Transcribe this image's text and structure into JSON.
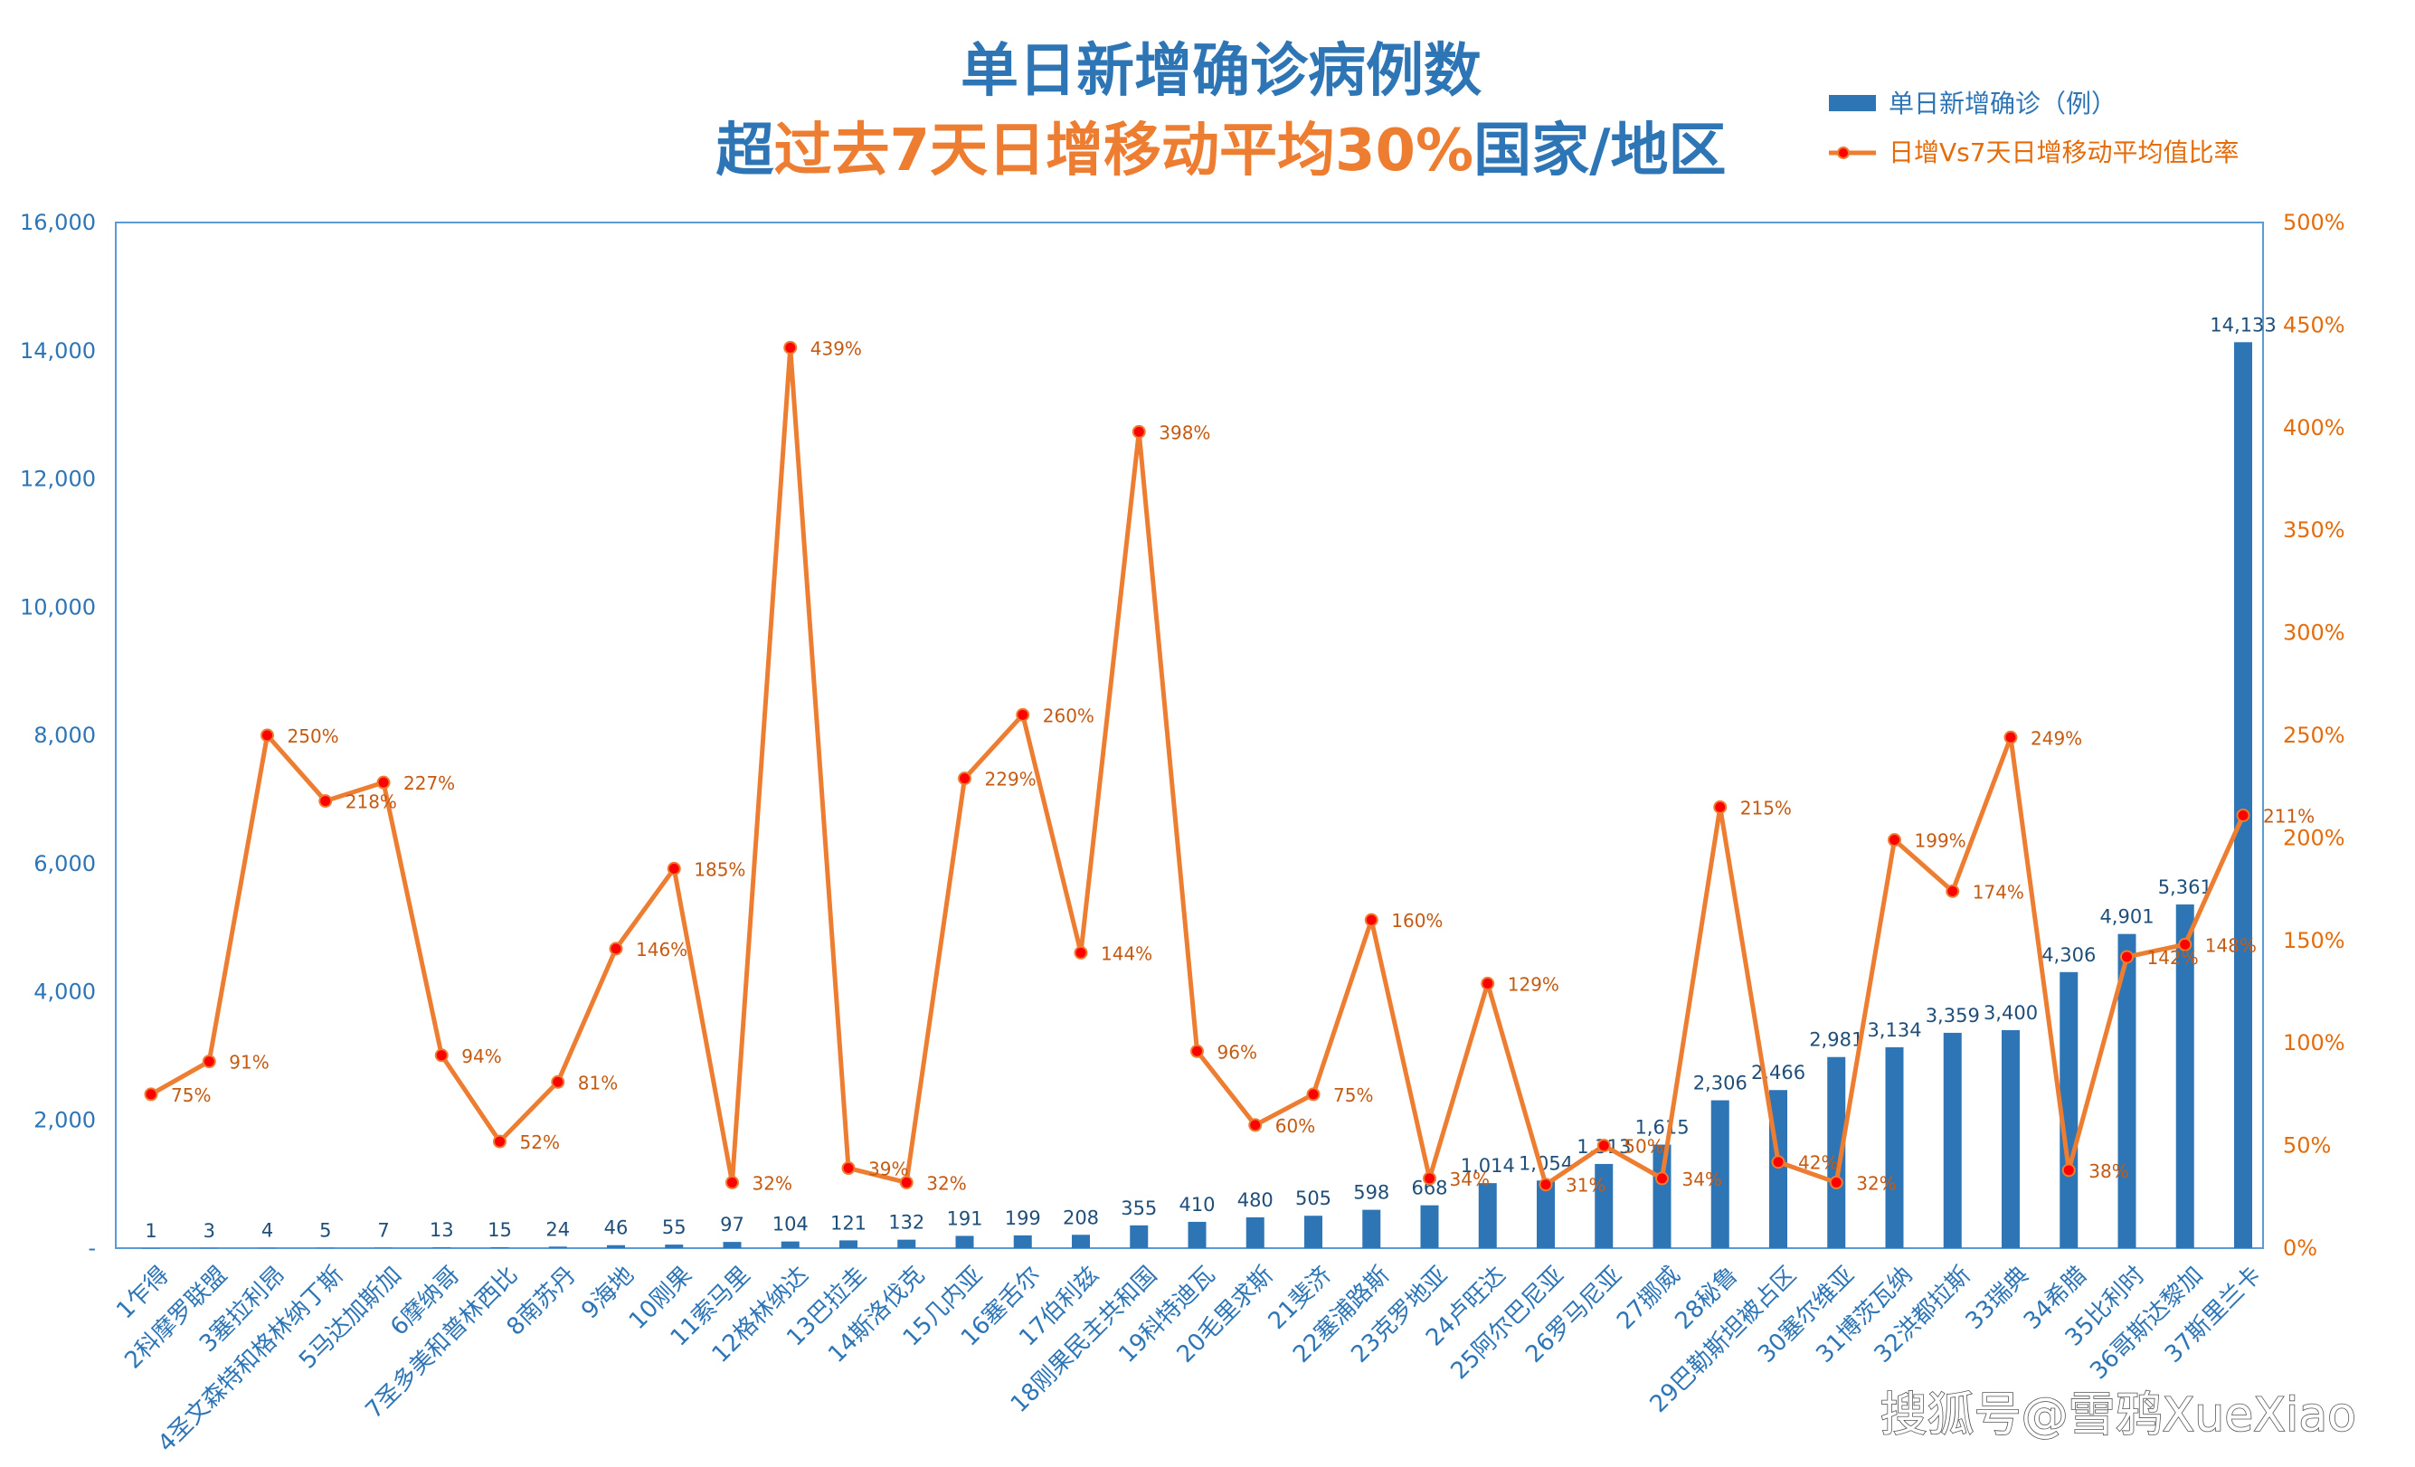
{
  "chart_data": {
    "type": "bar",
    "title_line1": "单日新增确诊病例数",
    "title_line2": [
      {
        "text": "超",
        "color": "#2e75b6"
      },
      {
        "text": "过去7天日增移动平均30%",
        "color": "#ed7d31"
      },
      {
        "text": "国家/地区",
        "color": "#2e75b6"
      }
    ],
    "legend_placement": "top-right",
    "left_axis": {
      "ylim": [
        0,
        16000
      ],
      "ticks": [
        "-",
        "2,000",
        "4,000",
        "6,000",
        "8,000",
        "10,000",
        "12,000",
        "14,000",
        "16,000"
      ],
      "tick_values": [
        0,
        2000,
        4000,
        6000,
        8000,
        10000,
        12000,
        14000,
        16000
      ]
    },
    "right_axis": {
      "ylim": [
        0,
        500
      ],
      "ticks": [
        "0%",
        "50%",
        "100%",
        "150%",
        "200%",
        "250%",
        "300%",
        "350%",
        "400%",
        "450%",
        "500%"
      ],
      "tick_values": [
        0,
        50,
        100,
        150,
        200,
        250,
        300,
        350,
        400,
        450,
        500
      ]
    },
    "grid": false,
    "categories": [
      "1乍得",
      "2科摩罗联盟",
      "3塞拉利昂",
      "4圣文森特和格林纳丁斯",
      "5马达加斯加",
      "6摩纳哥",
      "7圣多美和普林西比",
      "8南苏丹",
      "9海地",
      "10刚果",
      "11索马里",
      "12格林纳达",
      "13巴拉圭",
      "14斯洛伐克",
      "15几内亚",
      "16塞舌尔",
      "17伯利兹",
      "18刚果民主共和国",
      "19科特迪瓦",
      "20毛里求斯",
      "21斐济",
      "22塞浦路斯",
      "23克罗地亚",
      "24卢旺达",
      "25阿尔巴尼亚",
      "26罗马尼亚",
      "27挪威",
      "28秘鲁",
      "29巴勒斯坦被占区",
      "30塞尔维亚",
      "31博茨瓦纳",
      "32洪都拉斯",
      "33瑞典",
      "34希腊",
      "35比利时",
      "36哥斯达黎加",
      "37斯里兰卡"
    ],
    "series": [
      {
        "name": "单日新增确诊（例）",
        "type": "bar",
        "axis": "left",
        "color": "#2e75b6",
        "values": [
          1,
          3,
          4,
          5,
          7,
          13,
          15,
          24,
          46,
          55,
          97,
          104,
          121,
          132,
          191,
          199,
          208,
          355,
          410,
          480,
          505,
          598,
          668,
          1014,
          1054,
          1313,
          1615,
          2306,
          2466,
          2981,
          3134,
          3359,
          3400,
          4306,
          4901,
          5361,
          14133
        ],
        "labels": [
          "1",
          "3",
          "4",
          "5",
          "7",
          "13",
          "15",
          "24",
          "46",
          "55",
          "97",
          "104",
          "121",
          "132",
          "191",
          "199",
          "208",
          "355",
          "410",
          "480",
          "505",
          "598",
          "668",
          "1,014",
          "1,054",
          "1,313",
          "1,615",
          "2,306",
          "2,466",
          "2,981",
          "3,134",
          "3,359",
          "3,400",
          "4,306",
          "4,901",
          "5,361",
          "14,133"
        ]
      },
      {
        "name": "日增Vs7天日增移动平均值比率",
        "type": "line",
        "axis": "right",
        "color": "#ed7d31",
        "marker_color": "#ff0000",
        "values": [
          75,
          91,
          250,
          218,
          227,
          94,
          52,
          81,
          146,
          185,
          32,
          439,
          39,
          32,
          229,
          260,
          144,
          398,
          96,
          60,
          75,
          160,
          34,
          129,
          31,
          50,
          34,
          215,
          42,
          32,
          199,
          174,
          249,
          38,
          142,
          148,
          211
        ],
        "labels": [
          "75%",
          "91%",
          "250%",
          "218%",
          "227%",
          "94%",
          "52%",
          "81%",
          "146%",
          "185%",
          "32%",
          "439%",
          "39%",
          "32%",
          "229%",
          "260%",
          "144%",
          "398%",
          "96%",
          "60%",
          "75%",
          "160%",
          "34%",
          "129%",
          "31%",
          "50%",
          "34%",
          "215%",
          "42%",
          "32%",
          "199%",
          "174%",
          "249%",
          "38%",
          "142%",
          "148%",
          "211%"
        ]
      }
    ]
  },
  "watermark": "搜狐号@雪鸦XueXiao"
}
